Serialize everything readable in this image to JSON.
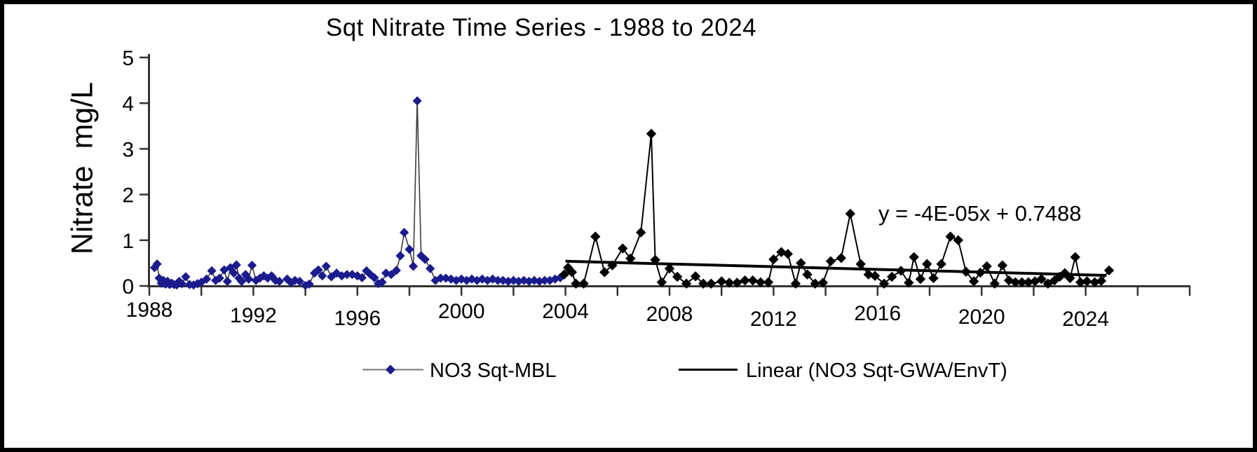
{
  "window": {
    "background": "#ffffff",
    "frame_color": "#000000"
  },
  "chart_data": {
    "type": "line",
    "title": "Sqt Nitrate Time Series - 1988 to 2024",
    "ylabel": "Nitrate  mg/L",
    "xlabel": "",
    "ylim": [
      0,
      5
    ],
    "xlim": [
      1988,
      2028
    ],
    "grid": false,
    "y_ticks": [
      0,
      1,
      2,
      3,
      4,
      5
    ],
    "x_minor_tick_step_years": 2,
    "x_tick_label_years": [
      1988,
      1992,
      1996,
      2000,
      2004,
      2008,
      2012,
      2016,
      2020,
      2024
    ],
    "x_tick_labels": [
      "1988",
      "1992",
      "1996",
      "2000",
      "2004",
      "2008",
      "2012",
      "2016",
      "2020",
      "2024"
    ],
    "annotation": {
      "text": "y = -4E-05x + 0.7488"
    },
    "legend": [
      {
        "label": "NO3 Sqt-MBL",
        "marker": "diamond",
        "marker_color": "#1b1b8e",
        "line_color": "#777777"
      },
      {
        "label": "Linear (NO3 Sqt-GWA/EnvT)",
        "marker": "line",
        "line_color": "#000000"
      }
    ],
    "trendline": {
      "name": "Linear (NO3 Sqt-GWA/EnvT)",
      "equation": "y = -4E-05x + 0.7488",
      "start": [
        2004.0,
        0.54
      ],
      "end": [
        2024.8,
        0.23
      ],
      "color": "#000000"
    },
    "series": [
      {
        "name": "NO3 Sqt-MBL",
        "marker": "diamond",
        "marker_color": "#1b1b8e",
        "line_color": "#3c3c3c",
        "points": [
          [
            1988.2,
            0.4
          ],
          [
            1988.3,
            0.48
          ],
          [
            1988.38,
            0.17
          ],
          [
            1988.46,
            0.06
          ],
          [
            1988.54,
            0.12
          ],
          [
            1988.62,
            0.04
          ],
          [
            1988.7,
            0.1
          ],
          [
            1988.78,
            0.03
          ],
          [
            1988.86,
            0.06
          ],
          [
            1988.95,
            0.03
          ],
          [
            1989.05,
            0.02
          ],
          [
            1989.15,
            0.1
          ],
          [
            1989.25,
            0.05
          ],
          [
            1989.4,
            0.2
          ],
          [
            1989.55,
            0.03
          ],
          [
            1989.7,
            0.02
          ],
          [
            1989.85,
            0.05
          ],
          [
            1990.0,
            0.08
          ],
          [
            1990.2,
            0.15
          ],
          [
            1990.4,
            0.33
          ],
          [
            1990.55,
            0.12
          ],
          [
            1990.7,
            0.17
          ],
          [
            1990.88,
            0.35
          ],
          [
            1991.0,
            0.1
          ],
          [
            1991.12,
            0.4
          ],
          [
            1991.25,
            0.28
          ],
          [
            1991.35,
            0.46
          ],
          [
            1991.45,
            0.17
          ],
          [
            1991.55,
            0.1
          ],
          [
            1991.7,
            0.25
          ],
          [
            1991.82,
            0.15
          ],
          [
            1991.95,
            0.45
          ],
          [
            1992.1,
            0.12
          ],
          [
            1992.25,
            0.17
          ],
          [
            1992.4,
            0.22
          ],
          [
            1992.55,
            0.17
          ],
          [
            1992.7,
            0.22
          ],
          [
            1992.85,
            0.12
          ],
          [
            1993.0,
            0.1
          ],
          [
            1993.3,
            0.15
          ],
          [
            1993.45,
            0.07
          ],
          [
            1993.6,
            0.12
          ],
          [
            1993.78,
            0.1
          ],
          [
            1994.0,
            0.01
          ],
          [
            1994.15,
            0.04
          ],
          [
            1994.35,
            0.28
          ],
          [
            1994.5,
            0.35
          ],
          [
            1994.65,
            0.22
          ],
          [
            1994.8,
            0.43
          ],
          [
            1995.0,
            0.2
          ],
          [
            1995.2,
            0.28
          ],
          [
            1995.4,
            0.22
          ],
          [
            1995.6,
            0.25
          ],
          [
            1995.8,
            0.25
          ],
          [
            1996.0,
            0.22
          ],
          [
            1996.18,
            0.18
          ],
          [
            1996.35,
            0.33
          ],
          [
            1996.5,
            0.25
          ],
          [
            1996.65,
            0.18
          ],
          [
            1996.8,
            0.05
          ],
          [
            1996.95,
            0.08
          ],
          [
            1997.1,
            0.28
          ],
          [
            1997.3,
            0.25
          ],
          [
            1997.5,
            0.34
          ],
          [
            1997.65,
            0.66
          ],
          [
            1997.8,
            1.17
          ],
          [
            1998.0,
            0.8
          ],
          [
            1998.15,
            0.43
          ],
          [
            1998.3,
            4.05
          ],
          [
            1998.45,
            0.66
          ],
          [
            1998.6,
            0.58
          ],
          [
            1998.8,
            0.38
          ],
          [
            1999.0,
            0.12
          ],
          [
            1999.2,
            0.17
          ],
          [
            1999.4,
            0.17
          ],
          [
            1999.6,
            0.15
          ],
          [
            1999.8,
            0.12
          ],
          [
            2000.0,
            0.15
          ],
          [
            2000.2,
            0.12
          ],
          [
            2000.4,
            0.15
          ],
          [
            2000.6,
            0.12
          ],
          [
            2000.8,
            0.15
          ],
          [
            2001.0,
            0.12
          ],
          [
            2001.2,
            0.15
          ],
          [
            2001.4,
            0.12
          ],
          [
            2001.6,
            0.12
          ],
          [
            2001.8,
            0.1
          ],
          [
            2002.0,
            0.12
          ],
          [
            2002.2,
            0.1
          ],
          [
            2002.4,
            0.12
          ],
          [
            2002.6,
            0.1
          ],
          [
            2002.8,
            0.12
          ],
          [
            2003.0,
            0.1
          ],
          [
            2003.2,
            0.12
          ],
          [
            2003.4,
            0.12
          ],
          [
            2003.6,
            0.15
          ],
          [
            2003.8,
            0.18
          ]
        ]
      },
      {
        "name": "NO3 Sqt-GWA/EnvT",
        "marker": "diamond",
        "marker_color": "#000000",
        "line_color": "#000000",
        "points": [
          [
            2003.95,
            0.25
          ],
          [
            2004.1,
            0.4
          ],
          [
            2004.25,
            0.3
          ],
          [
            2004.4,
            0.05
          ],
          [
            2004.7,
            0.05
          ],
          [
            2005.15,
            1.08
          ],
          [
            2005.5,
            0.3
          ],
          [
            2005.8,
            0.45
          ],
          [
            2006.2,
            0.82
          ],
          [
            2006.5,
            0.6
          ],
          [
            2006.9,
            1.17
          ],
          [
            2007.3,
            3.33
          ],
          [
            2007.45,
            0.57
          ],
          [
            2007.7,
            0.08
          ],
          [
            2008.0,
            0.38
          ],
          [
            2008.3,
            0.2
          ],
          [
            2008.65,
            0.05
          ],
          [
            2009.0,
            0.21
          ],
          [
            2009.3,
            0.05
          ],
          [
            2009.6,
            0.05
          ],
          [
            2010.0,
            0.1
          ],
          [
            2010.3,
            0.07
          ],
          [
            2010.6,
            0.07
          ],
          [
            2010.9,
            0.12
          ],
          [
            2011.2,
            0.12
          ],
          [
            2011.5,
            0.08
          ],
          [
            2011.8,
            0.08
          ],
          [
            2012.0,
            0.58
          ],
          [
            2012.3,
            0.74
          ],
          [
            2012.55,
            0.7
          ],
          [
            2012.85,
            0.05
          ],
          [
            2013.05,
            0.5
          ],
          [
            2013.3,
            0.25
          ],
          [
            2013.6,
            0.05
          ],
          [
            2013.9,
            0.07
          ],
          [
            2014.2,
            0.54
          ],
          [
            2014.6,
            0.61
          ],
          [
            2014.95,
            1.58
          ],
          [
            2015.35,
            0.48
          ],
          [
            2015.65,
            0.25
          ],
          [
            2015.9,
            0.22
          ],
          [
            2016.25,
            0.05
          ],
          [
            2016.55,
            0.2
          ],
          [
            2016.9,
            0.33
          ],
          [
            2017.2,
            0.07
          ],
          [
            2017.4,
            0.63
          ],
          [
            2017.65,
            0.15
          ],
          [
            2017.9,
            0.48
          ],
          [
            2018.15,
            0.17
          ],
          [
            2018.45,
            0.48
          ],
          [
            2018.8,
            1.08
          ],
          [
            2019.1,
            1.0
          ],
          [
            2019.4,
            0.31
          ],
          [
            2019.7,
            0.1
          ],
          [
            2019.95,
            0.29
          ],
          [
            2020.2,
            0.43
          ],
          [
            2020.5,
            0.05
          ],
          [
            2020.8,
            0.45
          ],
          [
            2021.05,
            0.12
          ],
          [
            2021.3,
            0.08
          ],
          [
            2021.55,
            0.08
          ],
          [
            2021.8,
            0.08
          ],
          [
            2022.05,
            0.1
          ],
          [
            2022.3,
            0.15
          ],
          [
            2022.55,
            0.05
          ],
          [
            2022.8,
            0.12
          ],
          [
            2023.0,
            0.2
          ],
          [
            2023.2,
            0.28
          ],
          [
            2023.4,
            0.17
          ],
          [
            2023.6,
            0.63
          ],
          [
            2023.8,
            0.08
          ],
          [
            2024.05,
            0.1
          ],
          [
            2024.35,
            0.08
          ],
          [
            2024.6,
            0.11
          ],
          [
            2024.9,
            0.34
          ]
        ]
      }
    ]
  }
}
